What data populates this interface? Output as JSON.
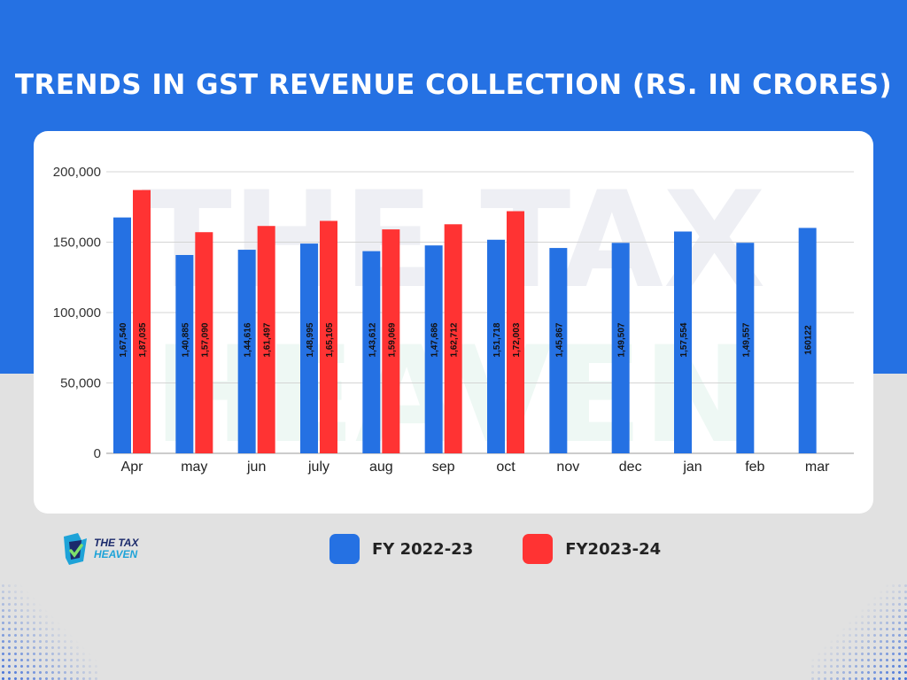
{
  "title": "TRENDS IN GST REVENUE COLLECTION (RS. IN CRORES)",
  "logo": {
    "line1": "THE TAX",
    "line2": "HEAVEN"
  },
  "watermark": {
    "line1": "THE TAX",
    "line2": "HEAVEN"
  },
  "colors": {
    "band": "#2571e3",
    "series1": "#2571e3",
    "series2": "#ff3333",
    "background": "#e1e1e1"
  },
  "chart_data": {
    "type": "bar",
    "title": "TRENDS IN GST REVENUE COLLECTION (RS. IN CRORES)",
    "categories": [
      "Apr",
      "may",
      "jun",
      "july",
      "aug",
      "sep",
      "oct",
      "nov",
      "dec",
      "jan",
      "feb",
      "mar"
    ],
    "ylim": [
      0,
      200000
    ],
    "yticks": [
      0,
      50000,
      100000,
      150000,
      200000
    ],
    "ytick_labels": [
      "0",
      "50,000",
      "100,000",
      "150,000",
      "200,000"
    ],
    "grid": true,
    "legend_position": "bottom",
    "series": [
      {
        "name": "FY 2022-23",
        "color": "#2571e3",
        "values": [
          167540,
          140885,
          144616,
          148995,
          143612,
          147686,
          151718,
          145867,
          149507,
          157554,
          149557,
          160122
        ],
        "labels": [
          "1,67,540",
          "1,40,885",
          "1,44,616",
          "1,48,995",
          "1,43,612",
          "1,47,686",
          "1,51,718",
          "1,45,867",
          "1,49,507",
          "1,57,554",
          "1,49,557",
          "160122"
        ]
      },
      {
        "name": "FY2023-24",
        "color": "#ff3333",
        "values": [
          187035,
          157090,
          161497,
          165105,
          159069,
          162712,
          172003,
          null,
          null,
          null,
          null,
          null
        ],
        "labels": [
          "1,87,035",
          "1,57,090",
          "1,61,497",
          "1,65,105",
          "1,59,069",
          "1,62,712",
          "1,72,003",
          null,
          null,
          null,
          null,
          null
        ]
      }
    ]
  }
}
